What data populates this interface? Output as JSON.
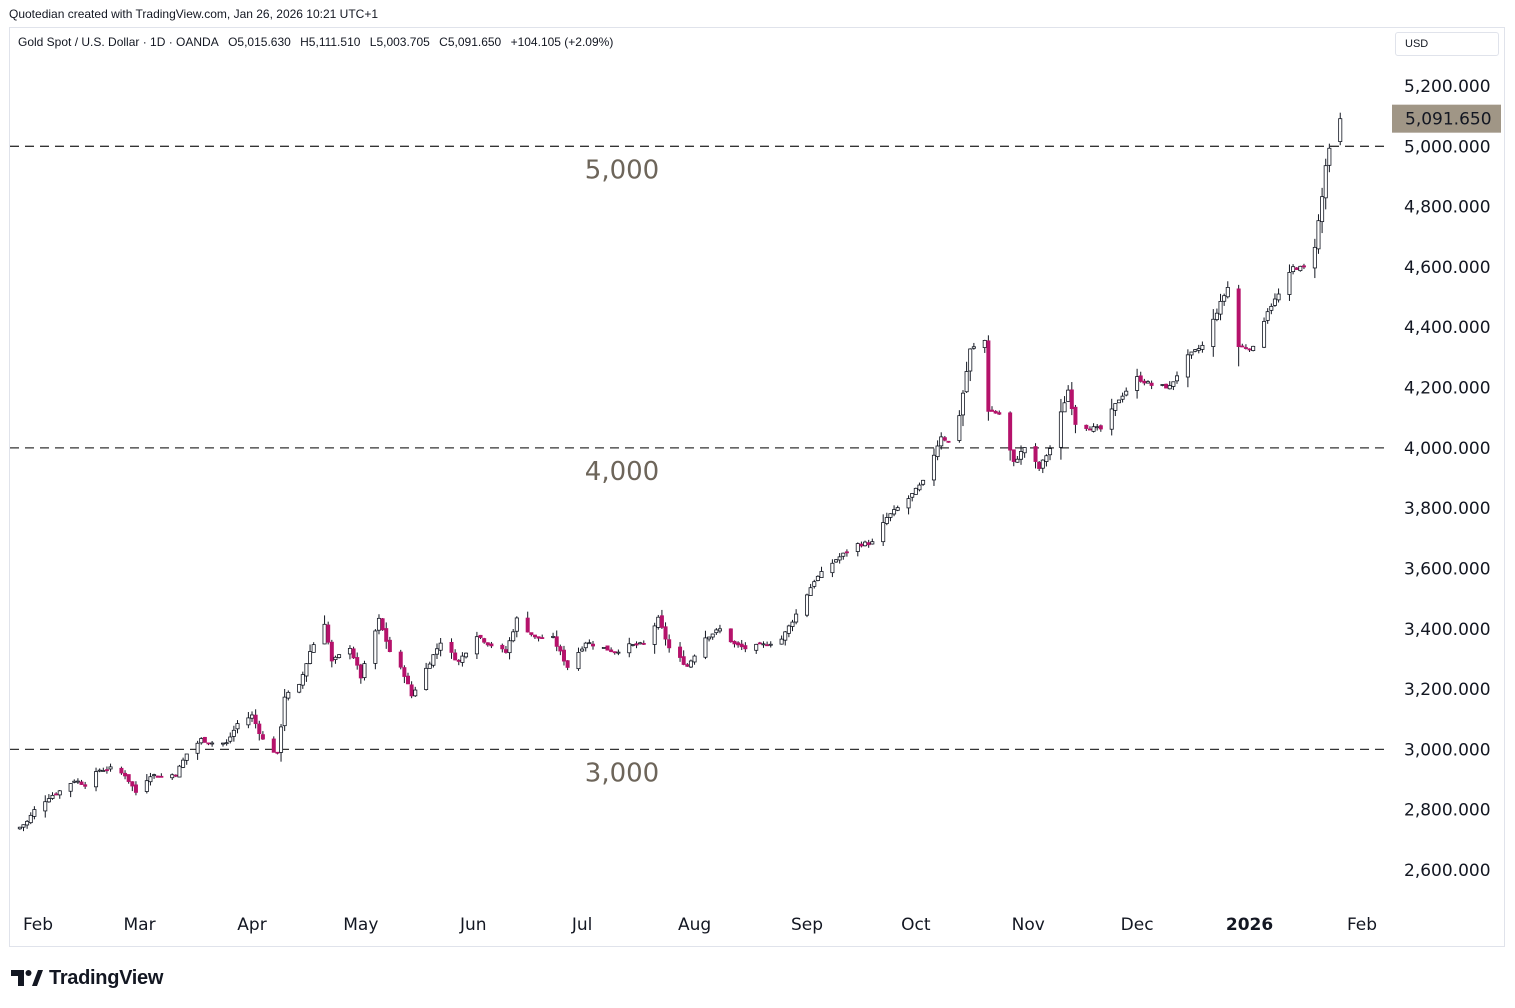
{
  "header": {
    "attribution": "Quotedian created with TradingView.com, Jan 26, 2026 10:21 UTC+1"
  },
  "legend": {
    "symbol": "Gold Spot / U.S. Dollar · 1D · OANDA",
    "open": "O5,015.630",
    "high": "H5,111.510",
    "low": "L5,003.705",
    "close": "C5,091.650",
    "change": "+104.105 (+2.09%)"
  },
  "currency_label": "USD",
  "price_badge": "5,091.650",
  "footer": {
    "brand": "TradingView"
  },
  "colors": {
    "up_candle": "#ffffff",
    "down_candle": "#b5126b",
    "wick": "#131722",
    "badge_bg": "#a09686",
    "level_text": "#6d655a",
    "dashed_line": "#333333"
  },
  "chart_data": {
    "type": "candlestick",
    "title": "Gold Spot / U.S. Dollar · 1D · OANDA",
    "y_range": [
      2520,
      5260
    ],
    "y_ticks": [
      {
        "value": 5200,
        "label": "5,200.000"
      },
      {
        "value": 5000,
        "label": "5,000.000"
      },
      {
        "value": 4800,
        "label": "4,800.000"
      },
      {
        "value": 4600,
        "label": "4,600.000"
      },
      {
        "value": 4400,
        "label": "4,400.000"
      },
      {
        "value": 4200,
        "label": "4,200.000"
      },
      {
        "value": 4000,
        "label": "4,000.000"
      },
      {
        "value": 3800,
        "label": "3,800.000"
      },
      {
        "value": 3600,
        "label": "3,600.000"
      },
      {
        "value": 3400,
        "label": "3,400.000"
      },
      {
        "value": 3200,
        "label": "3,200.000"
      },
      {
        "value": 3000,
        "label": "3,000.000"
      },
      {
        "value": 2800,
        "label": "2,800.000"
      },
      {
        "value": 2600,
        "label": "2,600.000"
      }
    ],
    "x_ticks": [
      {
        "date": "2025-02-01",
        "label": "Feb",
        "bold": false
      },
      {
        "date": "2025-03-01",
        "label": "Mar",
        "bold": false
      },
      {
        "date": "2025-04-01",
        "label": "Apr",
        "bold": false
      },
      {
        "date": "2025-05-01",
        "label": "May",
        "bold": false
      },
      {
        "date": "2025-06-01",
        "label": "Jun",
        "bold": false
      },
      {
        "date": "2025-07-01",
        "label": "Jul",
        "bold": false
      },
      {
        "date": "2025-08-01",
        "label": "Aug",
        "bold": false
      },
      {
        "date": "2025-09-01",
        "label": "Sep",
        "bold": false
      },
      {
        "date": "2025-10-01",
        "label": "Oct",
        "bold": false
      },
      {
        "date": "2025-11-01",
        "label": "Nov",
        "bold": false
      },
      {
        "date": "2025-12-01",
        "label": "Dec",
        "bold": false
      },
      {
        "date": "2026-01-01",
        "label": "2026",
        "bold": true
      },
      {
        "date": "2026-02-01",
        "label": "Feb",
        "bold": false
      }
    ],
    "x_range": [
      "2025-01-25",
      "2026-02-07"
    ],
    "horizontal_levels": [
      {
        "value": 5000,
        "label": "5,000",
        "label_date": "2025-07-12"
      },
      {
        "value": 4000,
        "label": "4,000",
        "label_date": "2025-07-12"
      },
      {
        "value": 3000,
        "label": "3,000",
        "label_date": "2025-07-12"
      }
    ],
    "last_price": 5091.65,
    "close_series": [
      [
        "2025-01-27",
        2742
      ],
      [
        "2025-01-29",
        2760
      ],
      [
        "2025-01-31",
        2798
      ],
      [
        "2025-02-04",
        2842
      ],
      [
        "2025-02-07",
        2862
      ],
      [
        "2025-02-11",
        2898
      ],
      [
        "2025-02-14",
        2884
      ],
      [
        "2025-02-18",
        2932
      ],
      [
        "2025-02-21",
        2936
      ],
      [
        "2025-02-25",
        2916
      ],
      [
        "2025-02-28",
        2858
      ],
      [
        "2025-03-04",
        2916
      ],
      [
        "2025-03-07",
        2910
      ],
      [
        "2025-03-11",
        2918
      ],
      [
        "2025-03-14",
        2985
      ],
      [
        "2025-03-18",
        3033
      ],
      [
        "2025-03-21",
        3022
      ],
      [
        "2025-03-25",
        3020
      ],
      [
        "2025-03-28",
        3085
      ],
      [
        "2025-04-01",
        3112
      ],
      [
        "2025-04-04",
        3032
      ],
      [
        "2025-04-08",
        2982
      ],
      [
        "2025-04-10",
        3176
      ],
      [
        "2025-04-14",
        3210
      ],
      [
        "2025-04-17",
        3325
      ],
      [
        "2025-04-21",
        3420
      ],
      [
        "2025-04-23",
        3290
      ],
      [
        "2025-04-28",
        3340
      ],
      [
        "2025-05-01",
        3240
      ],
      [
        "2025-05-06",
        3430
      ],
      [
        "2025-05-09",
        3325
      ],
      [
        "2025-05-13",
        3248
      ],
      [
        "2025-05-15",
        3178
      ],
      [
        "2025-05-20",
        3290
      ],
      [
        "2025-05-23",
        3357
      ],
      [
        "2025-05-28",
        3290
      ],
      [
        "2025-06-02",
        3380
      ],
      [
        "2025-06-05",
        3352
      ],
      [
        "2025-06-10",
        3322
      ],
      [
        "2025-06-13",
        3432
      ],
      [
        "2025-06-18",
        3370
      ],
      [
        "2025-06-23",
        3368
      ],
      [
        "2025-06-27",
        3274
      ],
      [
        "2025-07-02",
        3356
      ],
      [
        "2025-07-07",
        3336
      ],
      [
        "2025-07-10",
        3324
      ],
      [
        "2025-07-14",
        3344
      ],
      [
        "2025-07-18",
        3348
      ],
      [
        "2025-07-22",
        3432
      ],
      [
        "2025-07-25",
        3336
      ],
      [
        "2025-07-30",
        3276
      ],
      [
        "2025-08-04",
        3372
      ],
      [
        "2025-08-08",
        3398
      ],
      [
        "2025-08-12",
        3348
      ],
      [
        "2025-08-15",
        3335
      ],
      [
        "2025-08-20",
        3346
      ],
      [
        "2025-08-25",
        3366
      ],
      [
        "2025-08-29",
        3448
      ],
      [
        "2025-09-03",
        3560
      ],
      [
        "2025-09-09",
        3630
      ],
      [
        "2025-09-15",
        3680
      ],
      [
        "2025-09-19",
        3685
      ],
      [
        "2025-09-23",
        3768
      ],
      [
        "2025-09-29",
        3832
      ],
      [
        "2025-10-03",
        3886
      ],
      [
        "2025-10-08",
        4040
      ],
      [
        "2025-10-10",
        4018
      ],
      [
        "2025-10-13",
        4110
      ],
      [
        "2025-10-16",
        4325
      ],
      [
        "2025-10-20",
        4356
      ],
      [
        "2025-10-21",
        4125
      ],
      [
        "2025-10-24",
        4112
      ],
      [
        "2025-10-28",
        3950
      ],
      [
        "2025-10-31",
        4002
      ],
      [
        "2025-11-04",
        3932
      ],
      [
        "2025-11-07",
        3998
      ],
      [
        "2025-11-12",
        4192
      ],
      [
        "2025-11-14",
        4082
      ],
      [
        "2025-11-18",
        4066
      ],
      [
        "2025-11-21",
        4062
      ],
      [
        "2025-11-26",
        4162
      ],
      [
        "2025-12-01",
        4232
      ],
      [
        "2025-12-05",
        4208
      ],
      [
        "2025-12-10",
        4202
      ],
      [
        "2025-12-15",
        4302
      ],
      [
        "2025-12-19",
        4338
      ],
      [
        "2025-12-24",
        4480
      ],
      [
        "2025-12-26",
        4532
      ],
      [
        "2025-12-29",
        4336
      ],
      [
        "2026-01-02",
        4330
      ],
      [
        "2026-01-06",
        4456
      ],
      [
        "2026-01-09",
        4508
      ],
      [
        "2026-01-13",
        4598
      ],
      [
        "2026-01-16",
        4596
      ],
      [
        "2026-01-19",
        4670
      ],
      [
        "2026-01-21",
        4832
      ],
      [
        "2026-01-22",
        4936
      ],
      [
        "2026-01-23",
        4987
      ],
      [
        "2026-01-26",
        5091.65
      ]
    ],
    "last_candle": {
      "date": "2026-01-26",
      "open": 5015.63,
      "high": 5111.51,
      "low": 5003.705,
      "close": 5091.65
    }
  }
}
